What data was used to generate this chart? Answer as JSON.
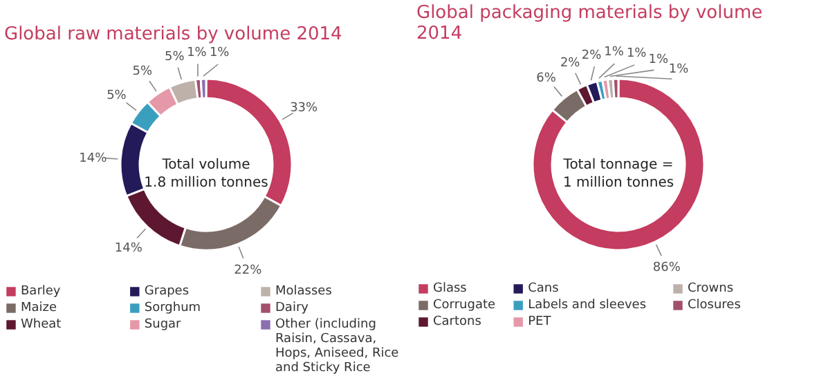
{
  "chart_data": [
    {
      "type": "donut",
      "title": "Global raw materials by volume 2014",
      "categories": [
        "Barley",
        "Maize",
        "Wheat",
        "Grapes",
        "Sorghum",
        "Sugar",
        "Molasses",
        "Dairy",
        "Other (including Raisin, Cassava, Hops, Aniseed, Rice and Sticky Rice"
      ],
      "values": [
        33,
        22,
        14,
        14,
        5,
        5,
        5,
        1,
        1
      ],
      "value_labels": [
        "33%",
        "22%",
        "14%",
        "14%",
        "5%",
        "5%",
        "5%",
        "1%",
        "1%"
      ],
      "colors": [
        "#c43c5f",
        "#7b6b67",
        "#5e1730",
        "#231a5a",
        "#3a9fbf",
        "#e498a8",
        "#bdb1aa",
        "#a3506c",
        "#8b6fb0"
      ],
      "annotations": [
        "Total volume",
        "1.8 million tonnes"
      ],
      "legend": "bottom"
    },
    {
      "type": "donut",
      "title": "Global packaging materials by volume 2014",
      "categories": [
        "Glass",
        "Corrugate",
        "Cartons",
        "Cans",
        "Labels and sleeves",
        "PET",
        "Crowns",
        "Closures"
      ],
      "values": [
        86,
        6,
        2,
        2,
        1,
        1,
        1,
        1
      ],
      "value_labels": [
        "86%",
        "6%",
        "2%",
        "2%",
        "1%",
        "1%",
        "1%",
        "1%"
      ],
      "colors": [
        "#c43c5f",
        "#7b6b67",
        "#5e1730",
        "#231a5a",
        "#3a9fbf",
        "#e498a8",
        "#bdb1aa",
        "#a3506c"
      ],
      "annotations": [
        "Total tonnage =",
        "1 million tonnes"
      ],
      "legend": "bottom"
    }
  ]
}
